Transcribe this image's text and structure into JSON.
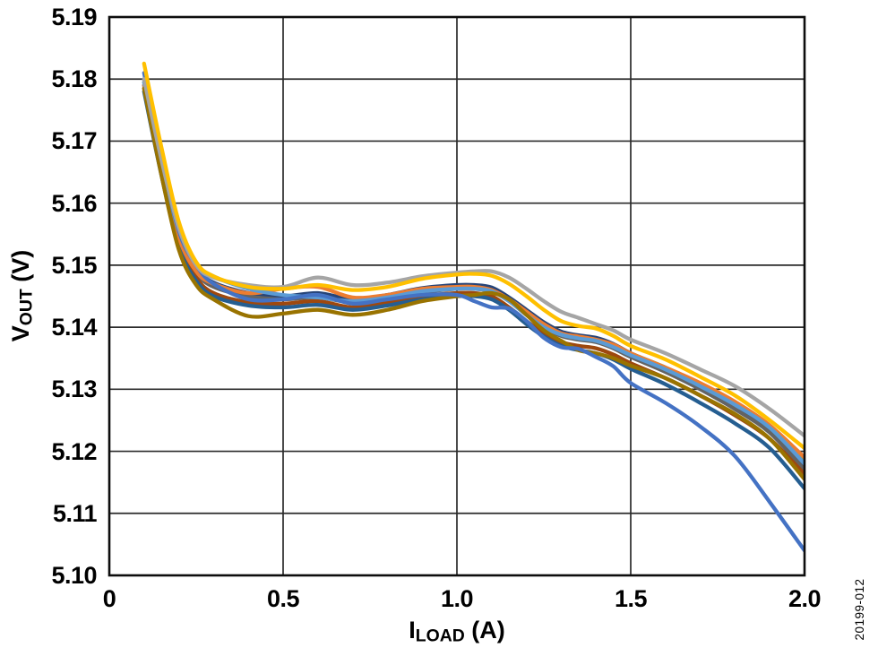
{
  "figure_number": "20199-012",
  "colors": {
    "background": "#ffffff",
    "plot_border": "#0d0d0d",
    "gridline": "#2b2b2b",
    "text": "#000000"
  },
  "axes": {
    "y": {
      "title_main": "V",
      "title_sub": "OUT",
      "title_unit": " (V)",
      "range": [
        5.1,
        5.19
      ],
      "ticks": [
        {
          "label": "5.19",
          "value": 5.19
        },
        {
          "label": "5.18",
          "value": 5.18
        },
        {
          "label": "5.17",
          "value": 5.17
        },
        {
          "label": "5.16",
          "value": 5.16
        },
        {
          "label": "5.15",
          "value": 5.15
        },
        {
          "label": "5.14",
          "value": 5.14
        },
        {
          "label": "5.13",
          "value": 5.13
        },
        {
          "label": "5.12",
          "value": 5.12
        },
        {
          "label": "5.11",
          "value": 5.11
        },
        {
          "label": "5.10",
          "value": 5.1
        }
      ]
    },
    "x": {
      "title_main": "I",
      "title_sub": "LOAD",
      "title_unit": " (A)",
      "range": [
        0,
        2
      ],
      "ticks": [
        {
          "label": "0",
          "value": 0
        },
        {
          "label": "0.5",
          "value": 0.5
        },
        {
          "label": "1.0",
          "value": 1.0
        },
        {
          "label": "1.5",
          "value": 1.5
        },
        {
          "label": "2.0",
          "value": 2.0
        }
      ]
    }
  },
  "chart_data": {
    "type": "line",
    "title": "",
    "xlabel": "I_LOAD (A)",
    "ylabel": "V_OUT (V)",
    "xlim": [
      0,
      2
    ],
    "ylim": [
      5.1,
      5.19
    ],
    "grid": true,
    "legend": "none",
    "line_width": 4.3,
    "x": [
      0.1,
      0.15,
      0.2,
      0.25,
      0.3,
      0.4,
      0.5,
      0.6,
      0.7,
      0.8,
      0.9,
      1.0,
      1.05,
      1.1,
      1.15,
      1.2,
      1.25,
      1.3,
      1.35,
      1.4,
      1.45,
      1.5,
      1.6,
      1.7,
      1.8,
      1.9,
      2.0
    ],
    "series": [
      {
        "name": "green",
        "color": "#70AD47",
        "values": [
          5.1795,
          5.1655,
          5.154,
          5.1488,
          5.1468,
          5.1452,
          5.1448,
          5.1452,
          5.1442,
          5.145,
          5.146,
          5.1465,
          5.1464,
          5.146,
          5.1445,
          5.1425,
          5.1405,
          5.1392,
          5.1386,
          5.1382,
          5.1372,
          5.1358,
          5.1335,
          5.1308,
          5.1278,
          5.124,
          5.1185
        ]
      },
      {
        "name": "navy",
        "color": "#264478",
        "values": [
          5.18,
          5.1665,
          5.155,
          5.1495,
          5.1472,
          5.1455,
          5.145,
          5.1455,
          5.1445,
          5.1452,
          5.1463,
          5.1468,
          5.1468,
          5.1464,
          5.1448,
          5.1428,
          5.1408,
          5.1393,
          5.1387,
          5.1383,
          5.1373,
          5.1358,
          5.1333,
          5.1305,
          5.1273,
          5.1235,
          5.1175
        ]
      },
      {
        "name": "dark-gray",
        "color": "#636363",
        "values": [
          5.179,
          5.1655,
          5.154,
          5.1488,
          5.1465,
          5.145,
          5.1445,
          5.1448,
          5.144,
          5.1446,
          5.1456,
          5.1462,
          5.1462,
          5.1458,
          5.1442,
          5.142,
          5.14,
          5.1386,
          5.138,
          5.1376,
          5.1366,
          5.1352,
          5.1328,
          5.13,
          5.1268,
          5.123,
          5.117
        ]
      },
      {
        "name": "rust",
        "color": "#9E480E",
        "values": [
          5.1785,
          5.165,
          5.1535,
          5.148,
          5.1455,
          5.144,
          5.1438,
          5.1442,
          5.1432,
          5.144,
          5.145,
          5.1455,
          5.1455,
          5.145,
          5.1432,
          5.141,
          5.139,
          5.1376,
          5.137,
          5.1366,
          5.1356,
          5.1342,
          5.1318,
          5.129,
          5.1258,
          5.122,
          5.1163
        ]
      },
      {
        "name": "steel-blue",
        "color": "#255E91",
        "values": [
          5.178,
          5.1645,
          5.153,
          5.1475,
          5.145,
          5.1435,
          5.1432,
          5.1436,
          5.1428,
          5.1435,
          5.1445,
          5.145,
          5.145,
          5.1445,
          5.1428,
          5.1405,
          5.1385,
          5.137,
          5.1363,
          5.1358,
          5.1348,
          5.1333,
          5.1308,
          5.1278,
          5.1245,
          5.1205,
          5.114
        ]
      },
      {
        "name": "orange",
        "color": "#ED7D31",
        "values": [
          5.179,
          5.166,
          5.1545,
          5.149,
          5.147,
          5.1455,
          5.1462,
          5.1465,
          5.1448,
          5.1452,
          5.1462,
          5.1465,
          5.1465,
          5.146,
          5.1445,
          5.1425,
          5.1405,
          5.139,
          5.1385,
          5.138,
          5.1372,
          5.1358,
          5.1335,
          5.131,
          5.128,
          5.1242,
          5.119
        ]
      },
      {
        "name": "light-blue",
        "color": "#5B9BD5",
        "values": [
          5.1795,
          5.1665,
          5.1555,
          5.1502,
          5.1482,
          5.1462,
          5.1452,
          5.1448,
          5.1442,
          5.1448,
          5.1458,
          5.1462,
          5.1462,
          5.1458,
          5.1442,
          5.142,
          5.14,
          5.1388,
          5.1382,
          5.1378,
          5.1368,
          5.1355,
          5.1332,
          5.1305,
          5.1275,
          5.1238,
          5.118
        ]
      },
      {
        "name": "olive",
        "color": "#997300",
        "values": [
          5.1785,
          5.1645,
          5.1525,
          5.1468,
          5.1445,
          5.1418,
          5.1422,
          5.1428,
          5.142,
          5.1428,
          5.1442,
          5.145,
          5.1452,
          5.1455,
          5.1445,
          5.142,
          5.1395,
          5.1378,
          5.1363,
          5.1358,
          5.135,
          5.1338,
          5.1318,
          5.129,
          5.126,
          5.122,
          5.1155
        ]
      },
      {
        "name": "blue",
        "color": "#4472C4",
        "values": [
          5.181,
          5.1675,
          5.1555,
          5.15,
          5.147,
          5.1445,
          5.1445,
          5.1452,
          5.1438,
          5.1445,
          5.1452,
          5.1452,
          5.1442,
          5.1432,
          5.143,
          5.141,
          5.1383,
          5.1368,
          5.1365,
          5.1352,
          5.1337,
          5.131,
          5.1278,
          5.124,
          5.1192,
          5.1118,
          5.104
        ]
      },
      {
        "name": "gray",
        "color": "#A5A5A5",
        "values": [
          5.18,
          5.167,
          5.156,
          5.15,
          5.148,
          5.1468,
          5.1465,
          5.148,
          5.1468,
          5.1472,
          5.1482,
          5.1488,
          5.149,
          5.149,
          5.148,
          5.1462,
          5.1442,
          5.1425,
          5.1415,
          5.1405,
          5.1395,
          5.138,
          5.1358,
          5.1332,
          5.1305,
          5.1268,
          5.1225
        ]
      },
      {
        "name": "gold",
        "color": "#FFC000",
        "values": [
          5.1825,
          5.169,
          5.157,
          5.1505,
          5.1482,
          5.1465,
          5.1462,
          5.1468,
          5.146,
          5.1465,
          5.1478,
          5.1485,
          5.1486,
          5.1483,
          5.147,
          5.145,
          5.1428,
          5.141,
          5.1402,
          5.1398,
          5.1386,
          5.137,
          5.1348,
          5.132,
          5.129,
          5.125,
          5.1205
        ]
      }
    ]
  }
}
